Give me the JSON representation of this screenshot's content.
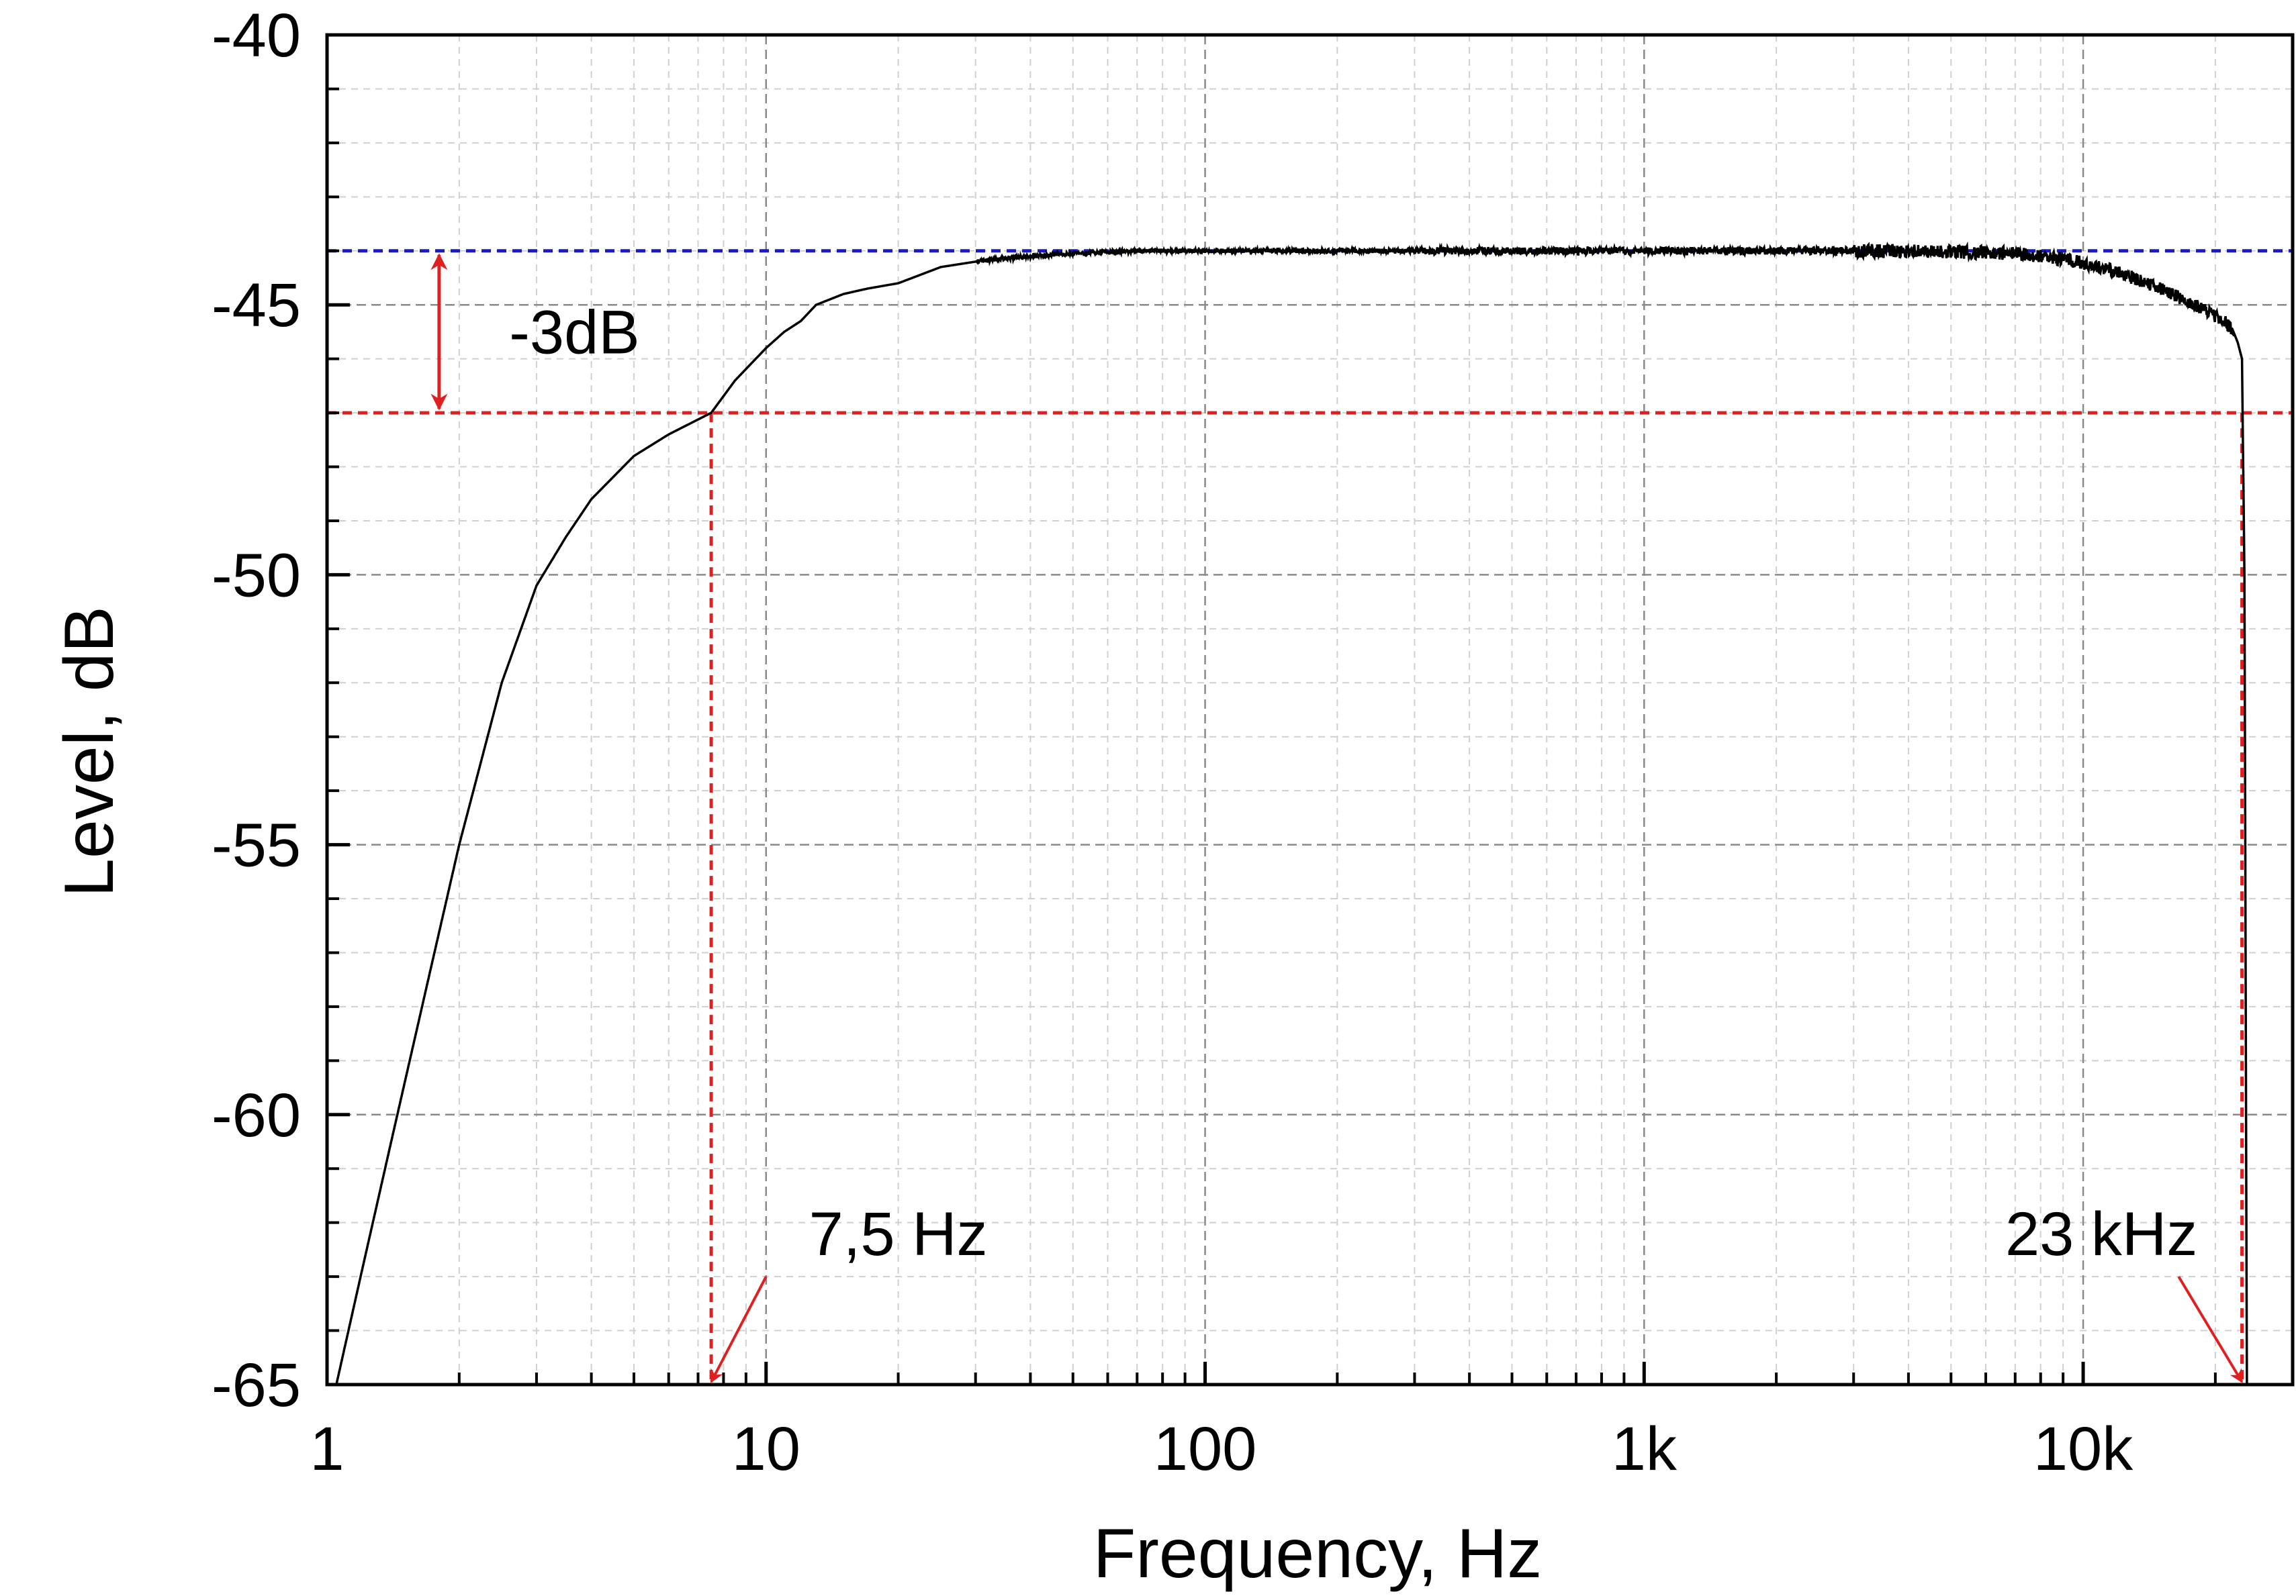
{
  "chart_data": {
    "type": "line",
    "xlabel": "Frequency, Hz",
    "ylabel": "Level, dB",
    "x_scale": "log",
    "xlim": [
      1,
      30000
    ],
    "ylim": [
      -65,
      -40
    ],
    "x_ticks": [
      {
        "value": 1,
        "label": "1"
      },
      {
        "value": 10,
        "label": "10"
      },
      {
        "value": 100,
        "label": "100"
      },
      {
        "value": 1000,
        "label": "1k"
      },
      {
        "value": 10000,
        "label": "10k"
      }
    ],
    "y_ticks": [
      {
        "value": -40,
        "label": "-40"
      },
      {
        "value": -45,
        "label": "-45"
      },
      {
        "value": -50,
        "label": "-50"
      },
      {
        "value": -55,
        "label": "-55"
      },
      {
        "value": -60,
        "label": "-60"
      },
      {
        "value": -65,
        "label": "-65"
      }
    ],
    "grid": true,
    "series": [
      {
        "color": "#000000",
        "x": [
          1.05,
          1.2,
          1.4,
          1.7,
          2.0,
          2.5,
          3.0,
          3.5,
          4.0,
          5.0,
          6.0,
          7.5,
          8.5,
          10,
          11,
          12,
          13,
          15,
          17,
          20,
          25,
          30,
          40,
          50,
          70,
          100,
          200,
          500,
          1000,
          2000,
          4000,
          7000,
          9000,
          11000,
          13000,
          16000,
          19000,
          21000,
          22000,
          22500,
          23000,
          23300,
          23600
        ],
        "y": [
          -65.0,
          -62.9,
          -60.5,
          -57.5,
          -55.0,
          -52.0,
          -50.2,
          -49.3,
          -48.6,
          -47.8,
          -47.4,
          -47.0,
          -46.4,
          -45.8,
          -45.5,
          -45.3,
          -45.0,
          -44.8,
          -44.7,
          -44.6,
          -44.3,
          -44.2,
          -44.1,
          -44.05,
          -44.0,
          -44.0,
          -44.0,
          -44.0,
          -44.0,
          -44.0,
          -44.0,
          -44.05,
          -44.15,
          -44.3,
          -44.5,
          -44.8,
          -45.1,
          -45.3,
          -45.5,
          -45.7,
          -46.0,
          -50.0,
          -65.0
        ]
      }
    ],
    "reference_lines": [
      {
        "orientation": "horizontal",
        "value": -44,
        "color": "#1a1acc",
        "style": "dashed"
      },
      {
        "orientation": "horizontal",
        "value": -47,
        "color": "#e02020",
        "style": "dashed"
      },
      {
        "orientation": "vertical",
        "value": 7.5,
        "color": "#e02020",
        "style": "dashed"
      },
      {
        "orientation": "vertical",
        "value": 23000,
        "color": "#e02020",
        "style": "dashed"
      }
    ],
    "annotations": [
      {
        "text": "-3dB",
        "type": "span",
        "x": 1.8,
        "y_from": -44,
        "y_to": -47,
        "label_x": 2.6,
        "label_y": -45.5
      },
      {
        "text": "7,5 Hz",
        "type": "arrow",
        "label_x": 20,
        "label_y": -62.2,
        "arrow_from": [
          10,
          -63.0
        ],
        "arrow_to": [
          7.5,
          -65.0
        ]
      },
      {
        "text": "23 kHz",
        "type": "arrow",
        "label_x": 11000,
        "label_y": -62.2,
        "arrow_from": [
          16500,
          -63.0
        ],
        "arrow_to": [
          23000,
          -65.0
        ]
      }
    ],
    "annotation_color": "#e02020"
  }
}
